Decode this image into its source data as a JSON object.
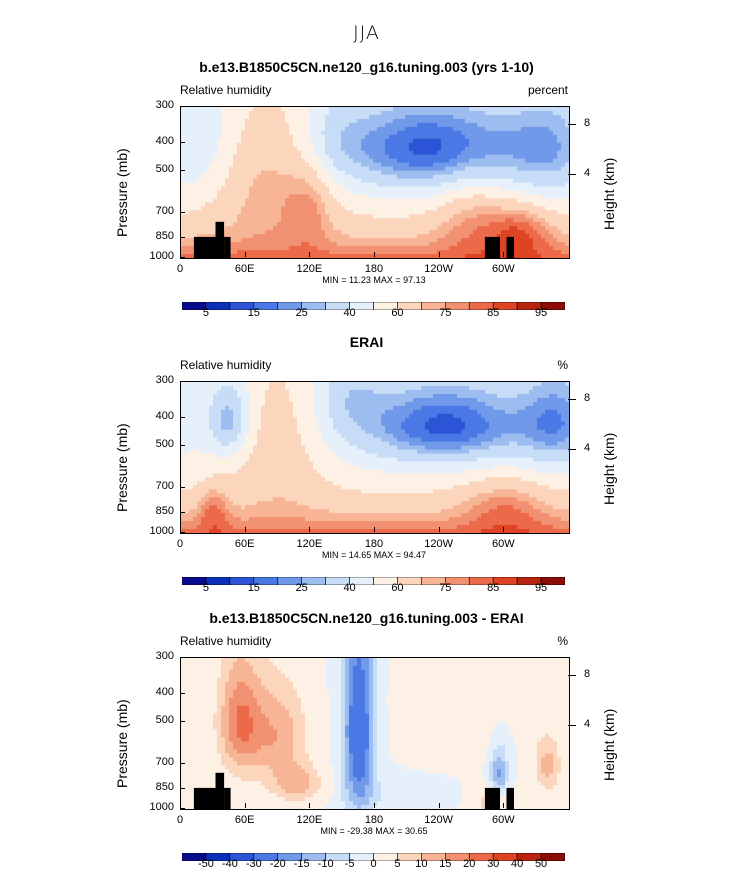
{
  "title": "JJA",
  "colors": {
    "rh": [
      "#0a0a8c",
      "#0c2fb8",
      "#2b55d6",
      "#4a78e4",
      "#7199ea",
      "#9dbdf0",
      "#c6dcf7",
      "#e6f0fb",
      "#fdf1e6",
      "#fbd6bd",
      "#f7b595",
      "#f29172",
      "#ec6a4a",
      "#de4324",
      "#b82410",
      "#8a0d06"
    ],
    "diff": [
      "#0a0a8c",
      "#0c2fb8",
      "#2b55d6",
      "#4a78e4",
      "#7199ea",
      "#9dbdf0",
      "#c6dcf7",
      "#e6f0fb",
      "#fdf1e6",
      "#fbd6bd",
      "#f7b595",
      "#f29172",
      "#ec6a4a",
      "#de4324",
      "#b82410",
      "#8a0d06"
    ]
  },
  "panels": [
    {
      "title": "b.e13.B1850C5CN.ne120_g16.tuning.003 (yrs 1-10)",
      "left_label": "Relative humidity",
      "right_label": "percent",
      "min_max": "MIN =   11.23   MAX =   97.13",
      "colorbar_labels": [
        "5",
        "15",
        "25",
        "40",
        "60",
        "75",
        "85",
        "95"
      ]
    },
    {
      "title": "ERAI",
      "left_label": "Relative humidity",
      "right_label": "%",
      "min_max": "MIN =   14.65   MAX =   94.47",
      "colorbar_labels": [
        "5",
        "15",
        "25",
        "40",
        "60",
        "75",
        "85",
        "95"
      ]
    },
    {
      "title": "b.e13.B1850C5CN.ne120_g16.tuning.003 - ERAI",
      "left_label": "Relative humidity",
      "right_label": "%",
      "min_max": "MIN = -29.38   MAX =   30.65",
      "colorbar_labels": [
        "-50",
        "-40",
        "-30",
        "-20",
        "-15",
        "-10",
        "-5",
        "0",
        "5",
        "10",
        "15",
        "20",
        "30",
        "40",
        "50"
      ]
    }
  ],
  "axes": {
    "y_label": "Pressure (mb)",
    "y_ticks": [
      "300",
      "400",
      "500",
      "700",
      "850",
      "1000"
    ],
    "y2_label": "Height (km)",
    "y2_ticks": [
      "8",
      "4"
    ],
    "x_ticks": [
      "0",
      "60E",
      "120E",
      "180",
      "120W",
      "60W"
    ]
  },
  "chart_data": [
    {
      "type": "heatmap",
      "title": "b.e13.B1850C5CN.ne120_g16.tuning.003 (yrs 1-10)",
      "variable": "Relative humidity",
      "units": "percent",
      "xlabel": "",
      "ylabel": "Pressure (mb)",
      "y2label": "Height (km)",
      "x_ticks": [
        "0",
        "60E",
        "120E",
        "180",
        "120W",
        "60W"
      ],
      "xlim": [
        0,
        360
      ],
      "y_ticks": [
        300,
        400,
        500,
        700,
        850,
        1000
      ],
      "ylim": [
        1000,
        300
      ],
      "y2_ticks": [
        8,
        4
      ],
      "levels": [
        5,
        10,
        15,
        20,
        25,
        30,
        40,
        50,
        60,
        70,
        75,
        80,
        85,
        90,
        95
      ],
      "min": 11.23,
      "max": 97.13
    },
    {
      "type": "heatmap",
      "title": "ERAI",
      "variable": "Relative humidity",
      "units": "%",
      "xlabel": "",
      "ylabel": "Pressure (mb)",
      "y2label": "Height (km)",
      "x_ticks": [
        "0",
        "60E",
        "120E",
        "180",
        "120W",
        "60W"
      ],
      "xlim": [
        0,
        360
      ],
      "y_ticks": [
        300,
        400,
        500,
        700,
        850,
        1000
      ],
      "ylim": [
        1000,
        300
      ],
      "y2_ticks": [
        8,
        4
      ],
      "levels": [
        5,
        10,
        15,
        20,
        25,
        30,
        40,
        50,
        60,
        70,
        75,
        80,
        85,
        90,
        95
      ],
      "min": 14.65,
      "max": 94.47
    },
    {
      "type": "heatmap",
      "title": "b.e13.B1850C5CN.ne120_g16.tuning.003 - ERAI",
      "variable": "Relative humidity",
      "units": "%",
      "xlabel": "",
      "ylabel": "Pressure (mb)",
      "y2label": "Height (km)",
      "x_ticks": [
        "0",
        "60E",
        "120E",
        "180",
        "120W",
        "60W"
      ],
      "xlim": [
        0,
        360
      ],
      "y_ticks": [
        300,
        400,
        500,
        700,
        850,
        1000
      ],
      "ylim": [
        1000,
        300
      ],
      "y2_ticks": [
        8,
        4
      ],
      "levels": [
        -50,
        -40,
        -30,
        -20,
        -15,
        -10,
        -5,
        0,
        5,
        10,
        15,
        20,
        30,
        40,
        50
      ],
      "min": -29.38,
      "max": 30.65
    }
  ]
}
